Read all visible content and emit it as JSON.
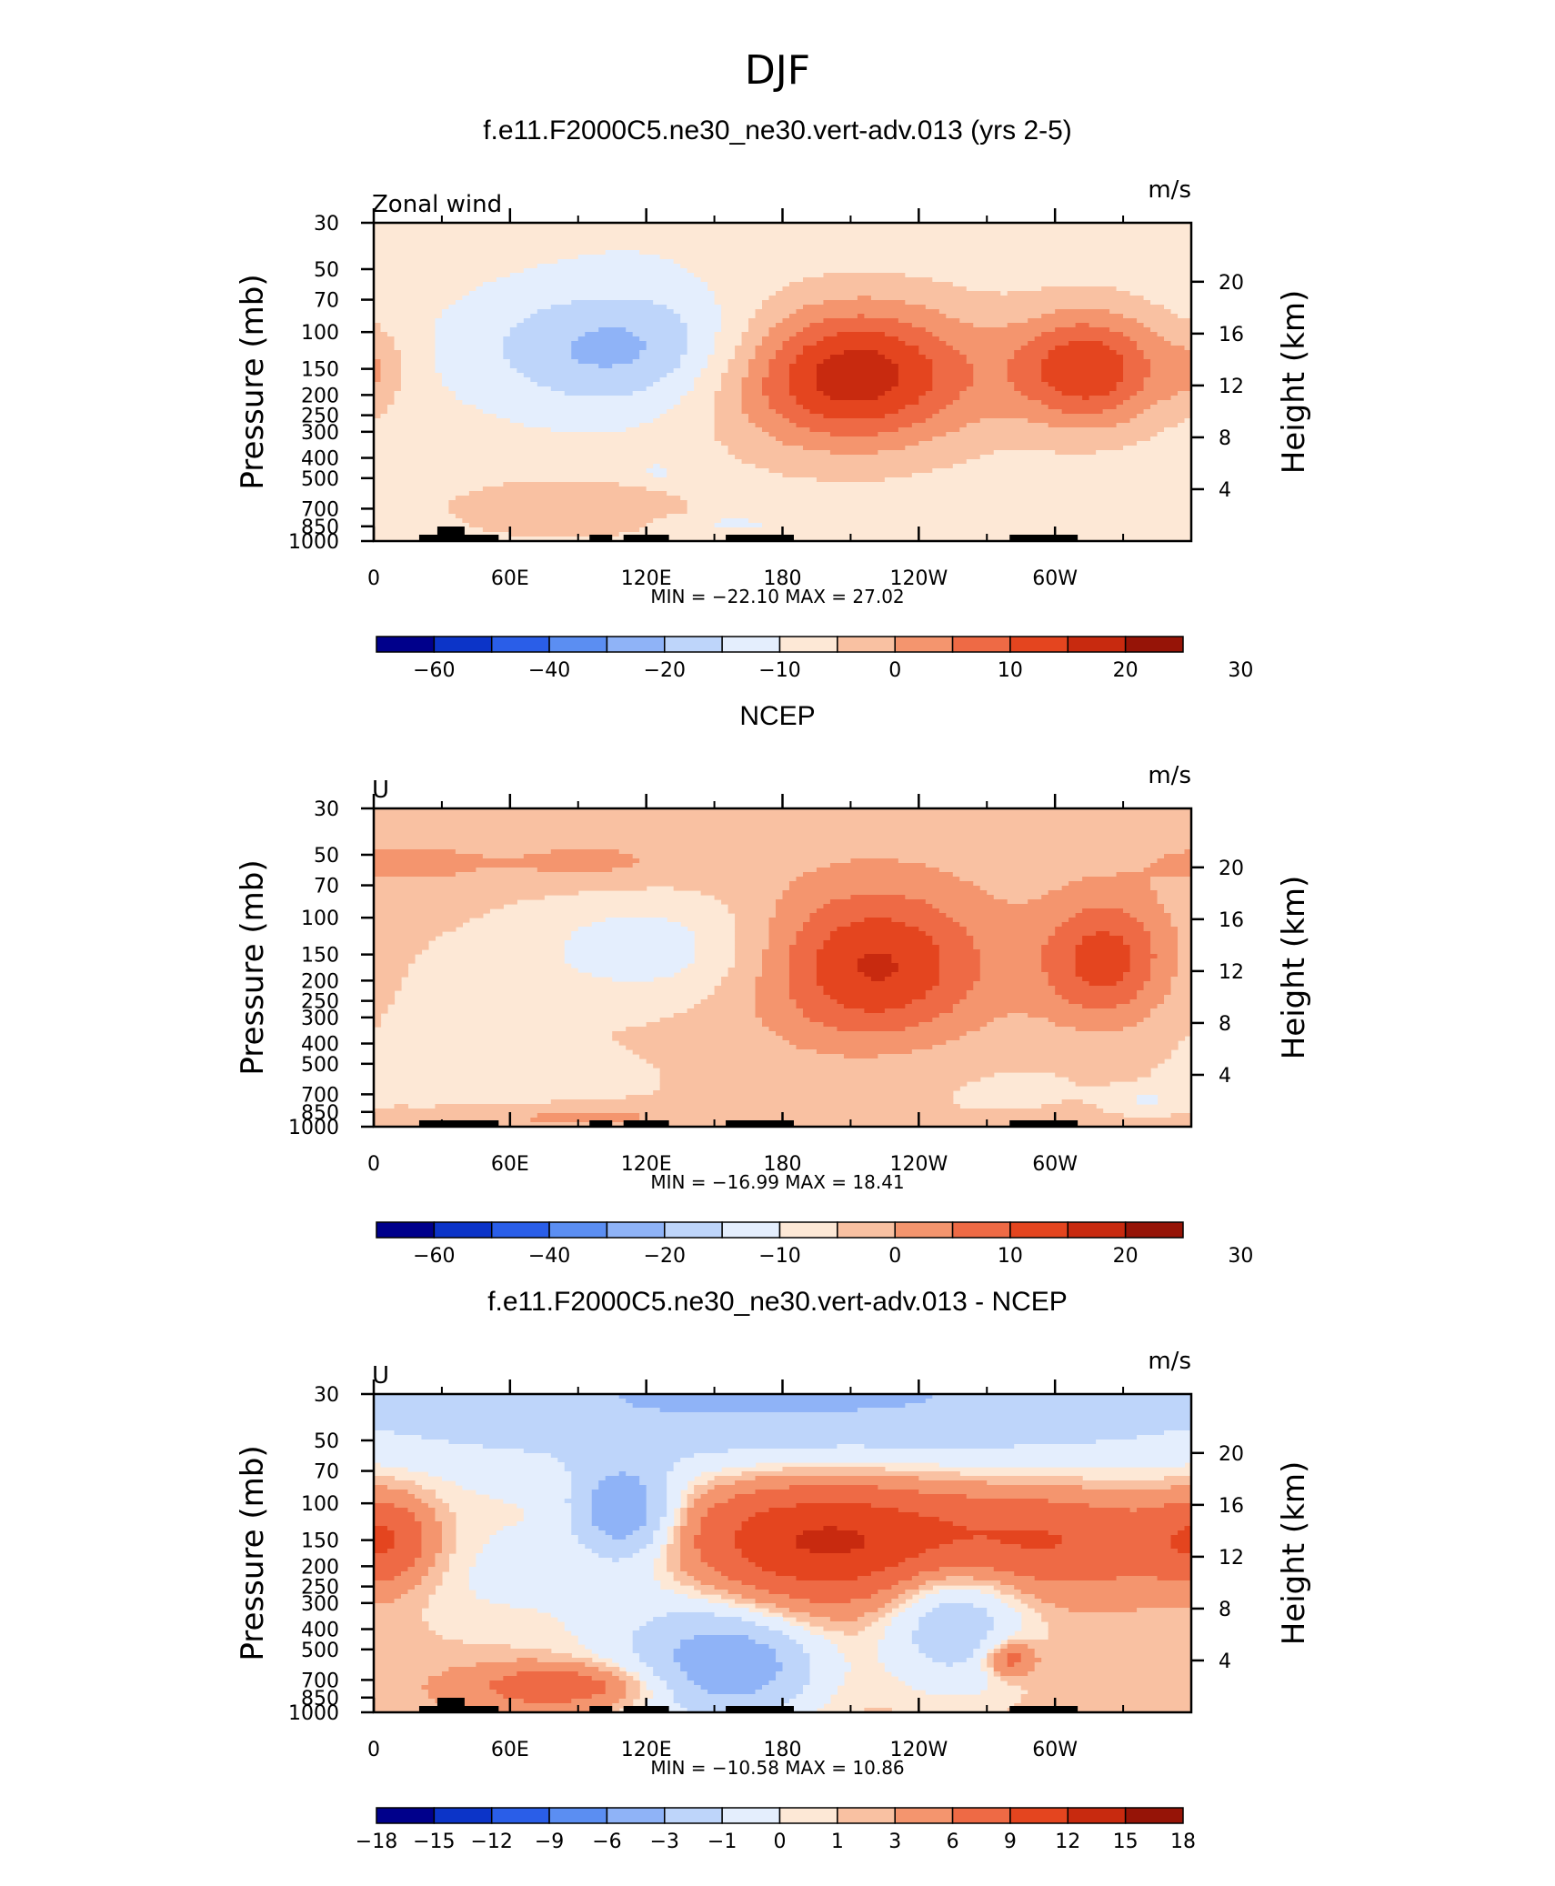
{
  "suptitle": "DJF",
  "panels": [
    {
      "title": "f.e11.F2000C5.ne30_ne30.vert-adv.013 (yrs 2-5)",
      "left_label": "Zonal wind",
      "right_label": "m/s",
      "min_max": "MIN = −22.10   MAX =   27.02",
      "colorbar_labels": [
        "−60",
        "−40",
        "−20",
        "−10",
        "0",
        "10",
        "20",
        "30"
      ],
      "colorbar_colors": [
        "#00008b",
        "#0c34c8",
        "#2a5ee8",
        "#5b8ef2",
        "#8fb3f7",
        "#bed5fa",
        "#e4eefd",
        "#fde8d6",
        "#f9c1a2",
        "#f4956e",
        "#ee6a45",
        "#e4451f",
        "#c82a0f",
        "#961407"
      ],
      "background_color": "#d4e6fb",
      "blobs": [
        {
          "lon": 110,
          "p": 120,
          "dx": 45,
          "dp": 0.28,
          "v": -14
        },
        {
          "lon": 210,
          "p": 160,
          "dx": 40,
          "dp": 0.32,
          "v": 27
        },
        {
          "lon": 315,
          "p": 150,
          "dx": 24,
          "dp": 0.26,
          "v": 22
        },
        {
          "lon": 0,
          "p": 150,
          "dx": 10,
          "dp": 0.18,
          "v": 6
        },
        {
          "lon": 85,
          "p": 700,
          "dx": 40,
          "dp": 0.14,
          "v": 7
        },
        {
          "lon": 125,
          "p": 470,
          "dx": 8,
          "dp": 0.05,
          "v": -4
        },
        {
          "lon": 155,
          "p": 820,
          "dx": 20,
          "dp": 0.03,
          "v": -4
        },
        {
          "lon": 190,
          "p": 30,
          "dx": 120,
          "dp": 0.15,
          "v": -2
        }
      ]
    },
    {
      "title": "NCEP",
      "left_label": "U",
      "right_label": "m/s",
      "min_max": "MIN = −16.99   MAX =   18.41",
      "colorbar_labels": [
        "−60",
        "−40",
        "−20",
        "−10",
        "0",
        "10",
        "20",
        "30"
      ],
      "colorbar_colors": [
        "#00008b",
        "#0c34c8",
        "#2a5ee8",
        "#5b8ef2",
        "#8fb3f7",
        "#bed5fa",
        "#e4eefd",
        "#fde8d6",
        "#f9c1a2",
        "#f4956e",
        "#ee6a45",
        "#e4451f",
        "#c82a0f",
        "#961407"
      ],
      "background_color": "#fde8d6",
      "blobs": [
        {
          "lon": 220,
          "p": 170,
          "dx": 35,
          "dp": 0.35,
          "v": 19
        },
        {
          "lon": 322,
          "p": 160,
          "dx": 20,
          "dp": 0.28,
          "v": 16
        },
        {
          "lon": 120,
          "p": 140,
          "dx": 40,
          "dp": 0.25,
          "v": -10
        },
        {
          "lon": 25,
          "p": 300,
          "dx": 35,
          "dp": 0.4,
          "v": -3
        },
        {
          "lon": 80,
          "p": 600,
          "dx": 45,
          "dp": 0.2,
          "v": -3
        },
        {
          "lon": 260,
          "p": 600,
          "dx": 60,
          "dp": 0.25,
          "v": -3
        },
        {
          "lon": 340,
          "p": 750,
          "dx": 10,
          "dp": 0.05,
          "v": -6
        },
        {
          "lon": 90,
          "p": 900,
          "dx": 35,
          "dp": 0.05,
          "v": 6
        },
        {
          "lon": 15,
          "p": 55,
          "dx": 25,
          "dp": 0.1,
          "v": 5
        },
        {
          "lon": 95,
          "p": 55,
          "dx": 30,
          "dp": 0.1,
          "v": 5
        }
      ]
    },
    {
      "title": "f.e11.F2000C5.ne30_ne30.vert-adv.013 - NCEP",
      "left_label": "U",
      "right_label": "m/s",
      "min_max": "MIN = −10.58   MAX =   10.86",
      "colorbar_labels": [
        "−18",
        "−15",
        "−12",
        "−9",
        "−6",
        "−3",
        "−1",
        "0",
        "1",
        "3",
        "6",
        "9",
        "12",
        "15",
        "18"
      ],
      "colorbar_colors": [
        "#00008b",
        "#0c34c8",
        "#2a5ee8",
        "#5b8ef2",
        "#8fb3f7",
        "#bed5fa",
        "#e4eefd",
        "#fde8d6",
        "#f9c1a2",
        "#f4956e",
        "#ee6a45",
        "#e4451f",
        "#c82a0f",
        "#961407"
      ],
      "background_color": "#fde8d6",
      "blobs": [
        {
          "lon": 180,
          "p": 30,
          "dx": 180,
          "dp": 0.35,
          "v": -7
        },
        {
          "lon": 110,
          "p": 110,
          "dx": 15,
          "dp": 0.2,
          "v": -9
        },
        {
          "lon": 195,
          "p": 150,
          "dx": 50,
          "dp": 0.28,
          "v": 9
        },
        {
          "lon": 300,
          "p": 150,
          "dx": 45,
          "dp": 0.22,
          "v": 5
        },
        {
          "lon": 5,
          "p": 150,
          "dx": 15,
          "dp": 0.2,
          "v": 5
        },
        {
          "lon": 255,
          "p": 350,
          "dx": 22,
          "dp": 0.3,
          "v": -6
        },
        {
          "lon": 160,
          "p": 600,
          "dx": 25,
          "dp": 0.22,
          "v": -8
        },
        {
          "lon": 130,
          "p": 350,
          "dx": 30,
          "dp": 0.5,
          "v": -3
        },
        {
          "lon": 55,
          "p": 200,
          "dx": 35,
          "dp": 0.3,
          "v": -2
        },
        {
          "lon": 85,
          "p": 750,
          "dx": 30,
          "dp": 0.1,
          "v": 5
        },
        {
          "lon": 280,
          "p": 550,
          "dx": 8,
          "dp": 0.08,
          "v": 5
        }
      ]
    }
  ],
  "axis": {
    "x_ticks": [
      {
        "lon": 0,
        "label": "0"
      },
      {
        "lon": 60,
        "label": "60E"
      },
      {
        "lon": 120,
        "label": "120E"
      },
      {
        "lon": 180,
        "label": "180"
      },
      {
        "lon": 240,
        "label": "120W"
      },
      {
        "lon": 300,
        "label": "60W"
      }
    ],
    "x_minor": [
      30,
      90,
      150,
      210,
      270,
      330
    ],
    "xlim": [
      0,
      360
    ],
    "y_ticks": [
      30,
      50,
      70,
      100,
      150,
      200,
      250,
      300,
      400,
      500,
      700,
      850,
      1000
    ],
    "ylim": [
      1000,
      30
    ],
    "y_scale": "log",
    "ylabel": "Pressure (mb)",
    "right_ticks": [
      4,
      8,
      12,
      16,
      20
    ],
    "right_label": "Height (km)"
  },
  "chart_data": [
    {
      "type": "heatmap",
      "title": "f.e11.F2000C5.ne30_ne30.vert-adv.013 (yrs 2-5)",
      "variable": "Zonal wind",
      "units": "m/s",
      "x": [
        "0",
        "60E",
        "120E",
        "180",
        "120W",
        "60W"
      ],
      "ylabel": "Pressure (mb)",
      "ylim": [
        1000,
        30
      ],
      "min": -22.1,
      "max": 27.02,
      "levels": [
        -60,
        -40,
        -20,
        -10,
        0,
        10,
        20,
        30
      ]
    },
    {
      "type": "heatmap",
      "title": "NCEP",
      "variable": "U",
      "units": "m/s",
      "x": [
        "0",
        "60E",
        "120E",
        "180",
        "120W",
        "60W"
      ],
      "ylabel": "Pressure (mb)",
      "ylim": [
        1000,
        30
      ],
      "min": -16.99,
      "max": 18.41,
      "levels": [
        -60,
        -40,
        -20,
        -10,
        0,
        10,
        20,
        30
      ]
    },
    {
      "type": "heatmap",
      "title": "f.e11.F2000C5.ne30_ne30.vert-adv.013 - NCEP",
      "variable": "U",
      "units": "m/s",
      "x": [
        "0",
        "60E",
        "120E",
        "180",
        "120W",
        "60W"
      ],
      "ylabel": "Pressure (mb)",
      "ylim": [
        1000,
        30
      ],
      "min": -10.58,
      "max": 10.86,
      "levels": [
        -18,
        -15,
        -12,
        -9,
        -6,
        -3,
        -1,
        0,
        1,
        3,
        6,
        9,
        12,
        15,
        18
      ]
    }
  ]
}
